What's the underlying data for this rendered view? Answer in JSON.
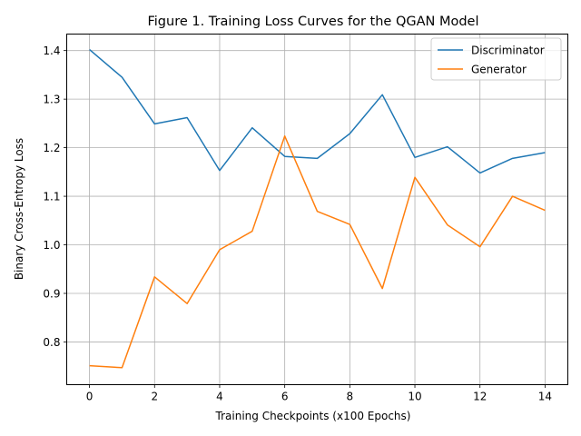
{
  "chart_data": {
    "type": "line",
    "title": "Figure 1. Training Loss Curves for the QGAN Model",
    "xlabel": "Training Checkpoints (x100 Epochs)",
    "ylabel": "Binary Cross-Entropy Loss",
    "x": [
      0,
      1,
      2,
      3,
      4,
      5,
      6,
      7,
      8,
      9,
      10,
      11,
      12,
      13,
      14
    ],
    "xlim": [
      -0.7,
      14.7
    ],
    "ylim": [
      0.712,
      1.434
    ],
    "xticks": [
      0,
      2,
      4,
      6,
      8,
      10,
      12,
      14
    ],
    "xtick_labels": [
      "0",
      "2",
      "4",
      "6",
      "8",
      "10",
      "12",
      "14"
    ],
    "yticks": [
      0.8,
      0.9,
      1.0,
      1.1,
      1.2,
      1.3,
      1.4
    ],
    "ytick_labels": [
      "0.8",
      "0.9",
      "1.0",
      "1.1",
      "1.2",
      "1.3",
      "1.4"
    ],
    "grid": true,
    "legend_position": "top-right",
    "series": [
      {
        "name": "Discriminator",
        "color": "#1f77b4",
        "values": [
          1.402,
          1.345,
          1.249,
          1.262,
          1.153,
          1.241,
          1.182,
          1.178,
          1.229,
          1.309,
          1.18,
          1.202,
          1.148,
          1.178,
          1.19
        ]
      },
      {
        "name": "Generator",
        "color": "#ff7f0e",
        "values": [
          0.751,
          0.747,
          0.934,
          0.879,
          0.99,
          1.028,
          1.224,
          1.069,
          1.042,
          0.91,
          1.139,
          1.041,
          0.996,
          1.1,
          1.071
        ]
      }
    ]
  }
}
